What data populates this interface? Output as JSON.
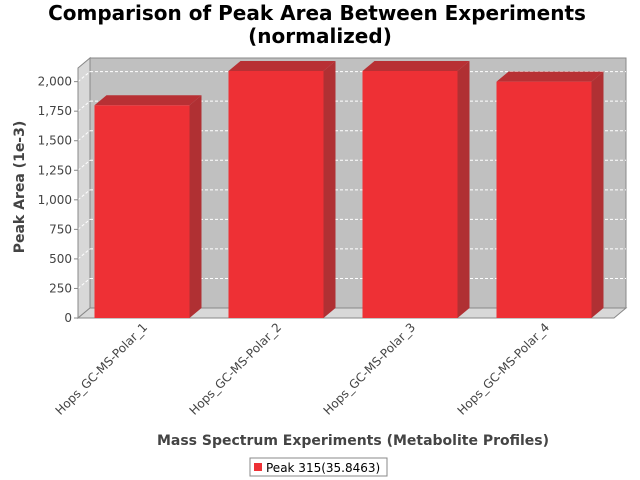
{
  "chart_data": {
    "type": "bar",
    "title_line1": "Comparison of Peak Area Between Experiments",
    "title_line2": "(normalized)",
    "xlabel": "Mass Spectrum Experiments (Metabolite Profiles)",
    "ylabel": "Peak Area (1e-3)",
    "categories": [
      "Hops_GC-MS-Polar_1",
      "Hops_GC-MS-Polar_2",
      "Hops_GC-MS-Polar_3",
      "Hops_GC-MS-Polar_4"
    ],
    "series": [
      {
        "name": "Peak 315(35.8463)",
        "values": [
          1800,
          2090,
          2090,
          2000
        ]
      }
    ],
    "yticks": [
      0,
      250,
      500,
      750,
      1000,
      1250,
      1500,
      1750,
      2000
    ],
    "ytick_labels": [
      "0",
      "250",
      "500",
      "750",
      "1,000",
      "1,250",
      "1,500",
      "1,750",
      "2,000"
    ],
    "ylim": [
      0,
      2200
    ],
    "grid": true,
    "legend_position": "bottom",
    "colors": {
      "bar_front": "#ee3035",
      "bar_top": "#b83034",
      "bar_side": "#b03033",
      "plot_back": "#c0c0c0",
      "plot_floor": "#d8d8d8"
    }
  }
}
